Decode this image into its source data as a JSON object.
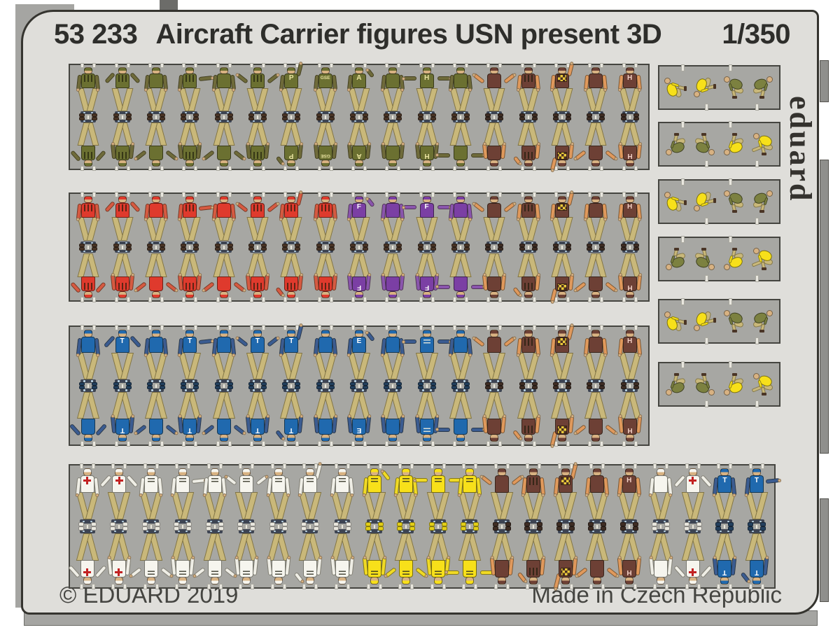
{
  "sheet": {
    "catalog_number": "53 233",
    "title": "Aircraft Carrier figures USN present 3D",
    "scale": "1/350",
    "brand_logo": "eduard",
    "copyright": "© EDUARD 2019",
    "made_in": "Made in Czech Republic"
  },
  "palette": {
    "green": "#6b7031",
    "red": "#df3a2d",
    "purple": "#7b3fa4",
    "blue": "#2069ae",
    "brown": "#6d4035",
    "white": "#f6f5ee",
    "yellow": "#f7e01a",
    "olive": "#7c8140",
    "khaki": "#c9b87a",
    "skin": "#d8b282",
    "panel_gray": "#a7a7a3",
    "sheet_gray": "#dfdeda",
    "ink": "#2e2e2b"
  },
  "rows": [
    {
      "name": "row-1",
      "units": [
        {
          "c": "green",
          "m": "stripes",
          "pt": "down",
          "pb": "hips"
        },
        {
          "c": "green",
          "m": "stripes",
          "pt": "hips",
          "pb": "down"
        },
        {
          "c": "green",
          "m": null,
          "pt": "down",
          "pb": "spread"
        },
        {
          "c": "green",
          "m": "stripes",
          "pt": "point",
          "pb": "down"
        },
        {
          "c": "green",
          "m": null,
          "pt": "down",
          "pb": "spread"
        },
        {
          "c": "green",
          "m": "stripes",
          "pt": "spread",
          "pb": "down"
        },
        {
          "c": "green",
          "m": "P",
          "pt": "raise",
          "pb": "bent"
        },
        {
          "c": "green",
          "m": "GSE",
          "pt": "down",
          "pb": "down"
        },
        {
          "c": "green",
          "m": "A",
          "pt": "bent",
          "pb": "down"
        },
        {
          "c": "green",
          "m": null,
          "pt": "down",
          "pb": "down"
        },
        {
          "c": "green",
          "m": "H",
          "pt": "tpose",
          "pb": "down"
        },
        {
          "c": "green",
          "m": null,
          "pt": "down",
          "pb": "tpose"
        },
        {
          "c": "brown",
          "m": null,
          "pt": "spread",
          "pb": "down"
        },
        {
          "c": "brown",
          "m": "stripes",
          "pt": "down",
          "pb": "bent"
        },
        {
          "c": "brown",
          "m": "checker",
          "pt": "raise",
          "pb": "raise"
        },
        {
          "c": "brown",
          "m": null,
          "pt": "down",
          "pb": "spread"
        },
        {
          "c": "brown",
          "m": "H",
          "pt": "down",
          "pb": "down"
        }
      ]
    },
    {
      "name": "row-2",
      "units": [
        {
          "c": "red",
          "m": "stripes",
          "pt": "down",
          "pb": "hips"
        },
        {
          "c": "red",
          "m": "stripes",
          "pt": "hips",
          "pb": "down"
        },
        {
          "c": "red",
          "m": null,
          "pt": "down",
          "pb": "spread"
        },
        {
          "c": "red",
          "m": "stripes",
          "pt": "point",
          "pb": "down"
        },
        {
          "c": "red",
          "m": null,
          "pt": "down",
          "pb": "spread"
        },
        {
          "c": "red",
          "m": "stripes",
          "pt": "spread",
          "pb": "down"
        },
        {
          "c": "red",
          "m": "stripes",
          "pt": "raise",
          "pb": "bent"
        },
        {
          "c": "red",
          "m": "stripes",
          "pt": "down",
          "pb": "down"
        },
        {
          "c": "purple",
          "m": "F",
          "pt": "bent",
          "pb": "down"
        },
        {
          "c": "purple",
          "m": null,
          "pt": "down",
          "pb": "down"
        },
        {
          "c": "purple",
          "m": "F",
          "pt": "tpose",
          "pb": "down"
        },
        {
          "c": "purple",
          "m": null,
          "pt": "down",
          "pb": "tpose"
        },
        {
          "c": "brown",
          "m": null,
          "pt": "spread",
          "pb": "down"
        },
        {
          "c": "brown",
          "m": "stripes",
          "pt": "down",
          "pb": "bent"
        },
        {
          "c": "brown",
          "m": "checker",
          "pt": "raise",
          "pb": "raise"
        },
        {
          "c": "brown",
          "m": null,
          "pt": "down",
          "pb": "spread"
        },
        {
          "c": "brown",
          "m": "H",
          "pt": "down",
          "pb": "down"
        }
      ]
    },
    {
      "name": "row-3",
      "units": [
        {
          "c": "blue",
          "m": null,
          "pt": "down",
          "pb": "hips"
        },
        {
          "c": "blue",
          "m": "T",
          "pt": "hips",
          "pb": "down"
        },
        {
          "c": "blue",
          "m": null,
          "pt": "down",
          "pb": "spread"
        },
        {
          "c": "blue",
          "m": "T",
          "pt": "point",
          "pb": "down"
        },
        {
          "c": "blue",
          "m": null,
          "pt": "down",
          "pb": "spread"
        },
        {
          "c": "blue",
          "m": "T",
          "pt": "spread",
          "pb": "down"
        },
        {
          "c": "blue",
          "m": "T",
          "pt": "raise",
          "pb": "bent"
        },
        {
          "c": "blue",
          "m": null,
          "pt": "down",
          "pb": "down"
        },
        {
          "c": "blue",
          "m": "E",
          "pt": "bent",
          "pb": "down"
        },
        {
          "c": "blue",
          "m": null,
          "pt": "down",
          "pb": "down"
        },
        {
          "c": "blue",
          "m": "lines",
          "pt": "tpose",
          "pb": "down"
        },
        {
          "c": "blue",
          "m": null,
          "pt": "down",
          "pb": "tpose"
        },
        {
          "c": "brown",
          "m": null,
          "pt": "spread",
          "pb": "down"
        },
        {
          "c": "brown",
          "m": "stripes",
          "pt": "down",
          "pb": "bent"
        },
        {
          "c": "brown",
          "m": "checker",
          "pt": "raise",
          "pb": "raise"
        },
        {
          "c": "brown",
          "m": null,
          "pt": "down",
          "pb": "spread"
        },
        {
          "c": "brown",
          "m": "H",
          "pt": "down",
          "pb": "down"
        }
      ]
    },
    {
      "name": "row-4",
      "units": [
        {
          "c": "white",
          "m": "cross",
          "pt": "down",
          "pb": "hips"
        },
        {
          "c": "white",
          "m": "cross",
          "pt": "hips",
          "pb": "down"
        },
        {
          "c": "white",
          "m": "lines",
          "pt": "down",
          "pb": "spread"
        },
        {
          "c": "white",
          "m": "lines",
          "pt": "point",
          "pb": "down"
        },
        {
          "c": "white",
          "m": "lines",
          "pt": "down",
          "pb": "spread"
        },
        {
          "c": "white",
          "m": "lines",
          "pt": "spread",
          "pb": "down"
        },
        {
          "c": "white",
          "m": "lines",
          "pt": "down",
          "pb": "down"
        },
        {
          "c": "white",
          "m": "lines",
          "pt": "raise",
          "pb": "bent"
        },
        {
          "c": "white",
          "m": "lines",
          "pt": "down",
          "pb": "down"
        },
        {
          "c": "yellow",
          "m": "lines",
          "pt": "bent",
          "pb": "down"
        },
        {
          "c": "yellow",
          "m": "lines",
          "pt": "down",
          "pb": "spread"
        },
        {
          "c": "yellow",
          "m": "lines",
          "pt": "tpose",
          "pb": "down"
        },
        {
          "c": "yellow",
          "m": "lines",
          "pt": "down",
          "pb": "tpose"
        },
        {
          "c": "brown",
          "m": null,
          "pt": "spread",
          "pb": "down"
        },
        {
          "c": "brown",
          "m": "stripes",
          "pt": "down",
          "pb": "bent"
        },
        {
          "c": "brown",
          "m": "checker",
          "pt": "raise",
          "pb": "raise"
        },
        {
          "c": "brown",
          "m": null,
          "pt": "down",
          "pb": "spread"
        },
        {
          "c": "brown",
          "m": "H",
          "pt": "down",
          "pb": "down"
        },
        {
          "c": "white",
          "m": null,
          "pt": "down",
          "pb": "down"
        },
        {
          "c": "white",
          "m": "cross",
          "pt": "hips",
          "pb": "hips"
        },
        {
          "c": "blue",
          "m": "T",
          "pt": "down",
          "pb": "down"
        },
        {
          "c": "blue",
          "m": "T",
          "pt": "point",
          "pb": "bent"
        }
      ]
    }
  ],
  "side_panels": [
    {
      "design": "A"
    },
    {
      "design": "B"
    },
    {
      "design": "A"
    },
    {
      "design": "B"
    },
    {
      "design": "A"
    },
    {
      "design": "B"
    }
  ],
  "side_designs": {
    "A": [
      "yellow",
      "yellow",
      "olive",
      "olive"
    ],
    "B": [
      "olive",
      "olive",
      "yellow",
      "yellow"
    ]
  }
}
